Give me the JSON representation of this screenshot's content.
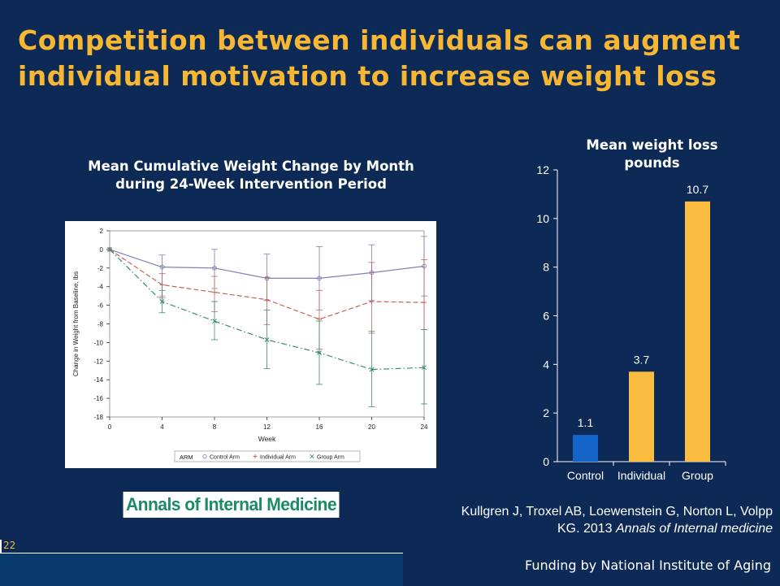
{
  "slide": {
    "title_line1": "Competition between individuals can augment",
    "title_line2": "individual motivation to increase weight loss",
    "slide_number": "22",
    "journal_logo_text": "Annals of Internal Medicine",
    "citation_line1": "Kullgren  J, Troxel AB, Loewenstein G, Norton L, Volpp",
    "citation_line2_prefix": "KG. 2013 ",
    "citation_line2_journal": "Annals of Internal medicine",
    "funding": "Funding by National Institute of Aging"
  },
  "colors": {
    "background": "#0d2a57",
    "title": "#f7b733",
    "control_bar": "#1565c8",
    "treatment_bars": "#fbbd3f",
    "control_arm": "#7c82b3",
    "individual_arm": "#c0665a",
    "group_arm": "#3f8a73",
    "logo_text": "#1d8a67"
  },
  "chart_data": [
    {
      "type": "line",
      "title_line1": "Mean Cumulative Weight Change by Month",
      "title_line2": "during 24-Week Intervention Period",
      "xlabel": "Week",
      "ylabel": "Change in Weight from Baseline, lbs",
      "x": [
        0,
        4,
        8,
        12,
        16,
        20,
        24
      ],
      "xticks": [
        "0",
        "4",
        "8",
        "12",
        "16",
        "20",
        "24"
      ],
      "yticks": [
        "2",
        "0",
        "-2",
        "-4",
        "-6",
        "-8",
        "-10",
        "-12",
        "-14",
        "-16",
        "-18"
      ],
      "ylim": [
        -18,
        2
      ],
      "legend_title": "ARM",
      "legend_position": "bottom",
      "series": [
        {
          "name": "Control Arm",
          "marker": "circle",
          "style": "solid",
          "color": "#7c82b3",
          "values": [
            0,
            -1.9,
            -2.0,
            -3.1,
            -3.1,
            -2.5,
            -1.8
          ],
          "err_low": [
            0,
            -5.2,
            -4.2,
            -5.5,
            -6.5,
            -5.5,
            -5.0
          ],
          "err_high": [
            0,
            -0.6,
            0.0,
            -0.5,
            0.3,
            0.5,
            1.4
          ]
        },
        {
          "name": "Individual Arm",
          "marker": "plus",
          "style": "dashed",
          "color": "#c0665a",
          "values": [
            0,
            -3.8,
            -4.6,
            -5.4,
            -7.5,
            -5.6,
            -5.7
          ],
          "err_low": [
            0,
            -5.0,
            -6.7,
            -8.1,
            -10.7,
            -9.0,
            -8.6
          ],
          "err_high": [
            0,
            -2.6,
            -2.9,
            -3.0,
            -4.4,
            -1.4,
            -1.1
          ]
        },
        {
          "name": "Group Arm",
          "marker": "x",
          "style": "dashdot",
          "color": "#3f8a73",
          "values": [
            0,
            -5.6,
            -7.7,
            -9.7,
            -11.1,
            -12.9,
            -12.7
          ],
          "err_low": [
            0,
            -6.8,
            -9.7,
            -12.8,
            -14.5,
            -16.9,
            -16.6
          ],
          "err_high": [
            0,
            -4.4,
            -5.6,
            -6.5,
            -7.7,
            -8.8,
            -8.6
          ]
        }
      ]
    },
    {
      "type": "bar",
      "title_line1": "Mean weight loss",
      "title_line2": "pounds",
      "categories": [
        "Control",
        "Individual",
        "Group"
      ],
      "values": [
        1.1,
        3.7,
        10.7
      ],
      "value_labels": [
        "1.1",
        "3.7",
        "10.7"
      ],
      "yticks": [
        "0",
        "2",
        "4",
        "6",
        "8",
        "10",
        "12"
      ],
      "ylim": [
        0,
        12
      ],
      "grid": false
    }
  ]
}
